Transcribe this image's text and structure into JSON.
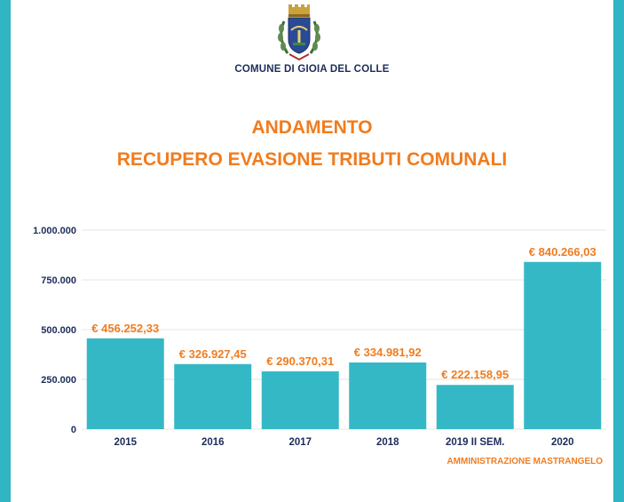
{
  "header": {
    "municipality": "COMUNE DI GIOIA DEL COLLE",
    "title_line1": "ANDAMENTO",
    "title_line2": "RECUPERO EVASIONE TRIBUTI COMUNALI"
  },
  "footer": {
    "text": "AMMINISTRAZIONE MASTRANGELO"
  },
  "colors": {
    "bar": "#35b8c6",
    "accent": "#f07c1f",
    "navy": "#1c2d5a",
    "side_bar": "#2fb5c4"
  },
  "chart_data": {
    "type": "bar",
    "categories": [
      "2015",
      "2016",
      "2017",
      "2018",
      "2019 II SEM.",
      "2020"
    ],
    "values": [
      456252.33,
      326927.45,
      290370.31,
      334981.92,
      222158.95,
      840266.03
    ],
    "value_labels": [
      "€ 456.252,33",
      "€ 326.927,45",
      "€ 290.370,31",
      "€ 334.981,92",
      "€ 222.158,95",
      "€ 840.266,03"
    ],
    "yticks": [
      0,
      250000,
      500000,
      750000,
      1000000
    ],
    "ytick_labels": [
      "0",
      "250.000",
      "500.000",
      "750.000",
      "1.000.000"
    ],
    "ylim": [
      0,
      1000000
    ],
    "grid": true,
    "title": "",
    "xlabel": "",
    "ylabel": ""
  }
}
